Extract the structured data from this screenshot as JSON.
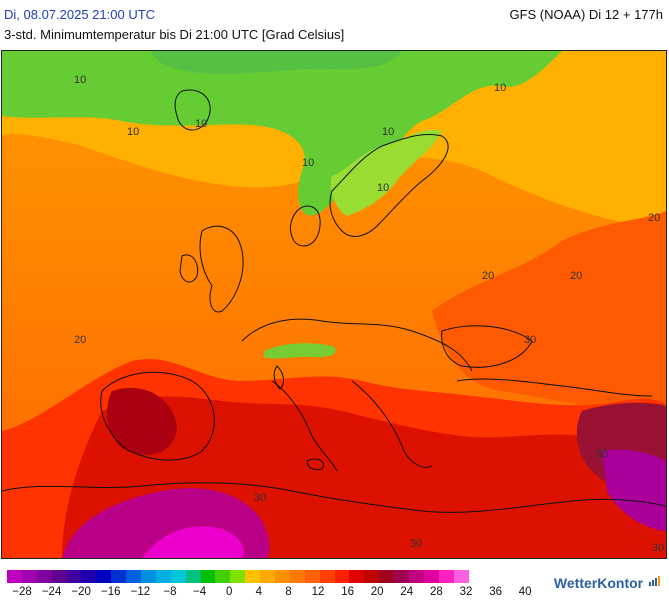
{
  "header": {
    "date_time": "Di, 08.07.2025 21:00 UTC",
    "model_run": "GFS (NOAA) Di 12 + 177h",
    "subtitle": "3-std. Minimumtemperatur bis Di 21:00 UTC [Grad Celsius]"
  },
  "map": {
    "contour_labels": [
      "10",
      "10",
      "10",
      "10",
      "10",
      "10",
      "10",
      "20",
      "20",
      "20",
      "20",
      "30",
      "30",
      "30",
      "30",
      "30"
    ],
    "colors": {
      "green": "#66cc33",
      "light_green": "#99dd33",
      "yellow_orange": "#ffaa00",
      "orange": "#ff8800",
      "deep_orange": "#ff6600",
      "red": "#ee2200",
      "dark_red": "#cc1100",
      "maroon": "#990022",
      "purple": "#aa0088",
      "magenta": "#ee00cc"
    }
  },
  "legend": {
    "colors": [
      "#c000c0",
      "#a000b0",
      "#8000a0",
      "#600090",
      "#4000a0",
      "#2000b0",
      "#0000c0",
      "#0030d0",
      "#0060e0",
      "#0090e0",
      "#00b0e0",
      "#00c8d8",
      "#00c080",
      "#00c000",
      "#40d000",
      "#80e000",
      "#ffc000",
      "#ffa800",
      "#ff9000",
      "#ff7800",
      "#ff6000",
      "#ff4000",
      "#ff2000",
      "#e00000",
      "#c00000",
      "#a00020",
      "#a00050",
      "#c00080",
      "#e000a0",
      "#ff20c0",
      "#ff60e0"
    ],
    "tick_labels": [
      "−28",
      "−24",
      "−20",
      "−16",
      "−12",
      "−8",
      "−4",
      "0",
      "4",
      "8",
      "12",
      "16",
      "20",
      "24",
      "28",
      "32",
      "36",
      "40"
    ]
  },
  "branding": {
    "name": "WetterKontor",
    "icon": "bars-icon"
  }
}
